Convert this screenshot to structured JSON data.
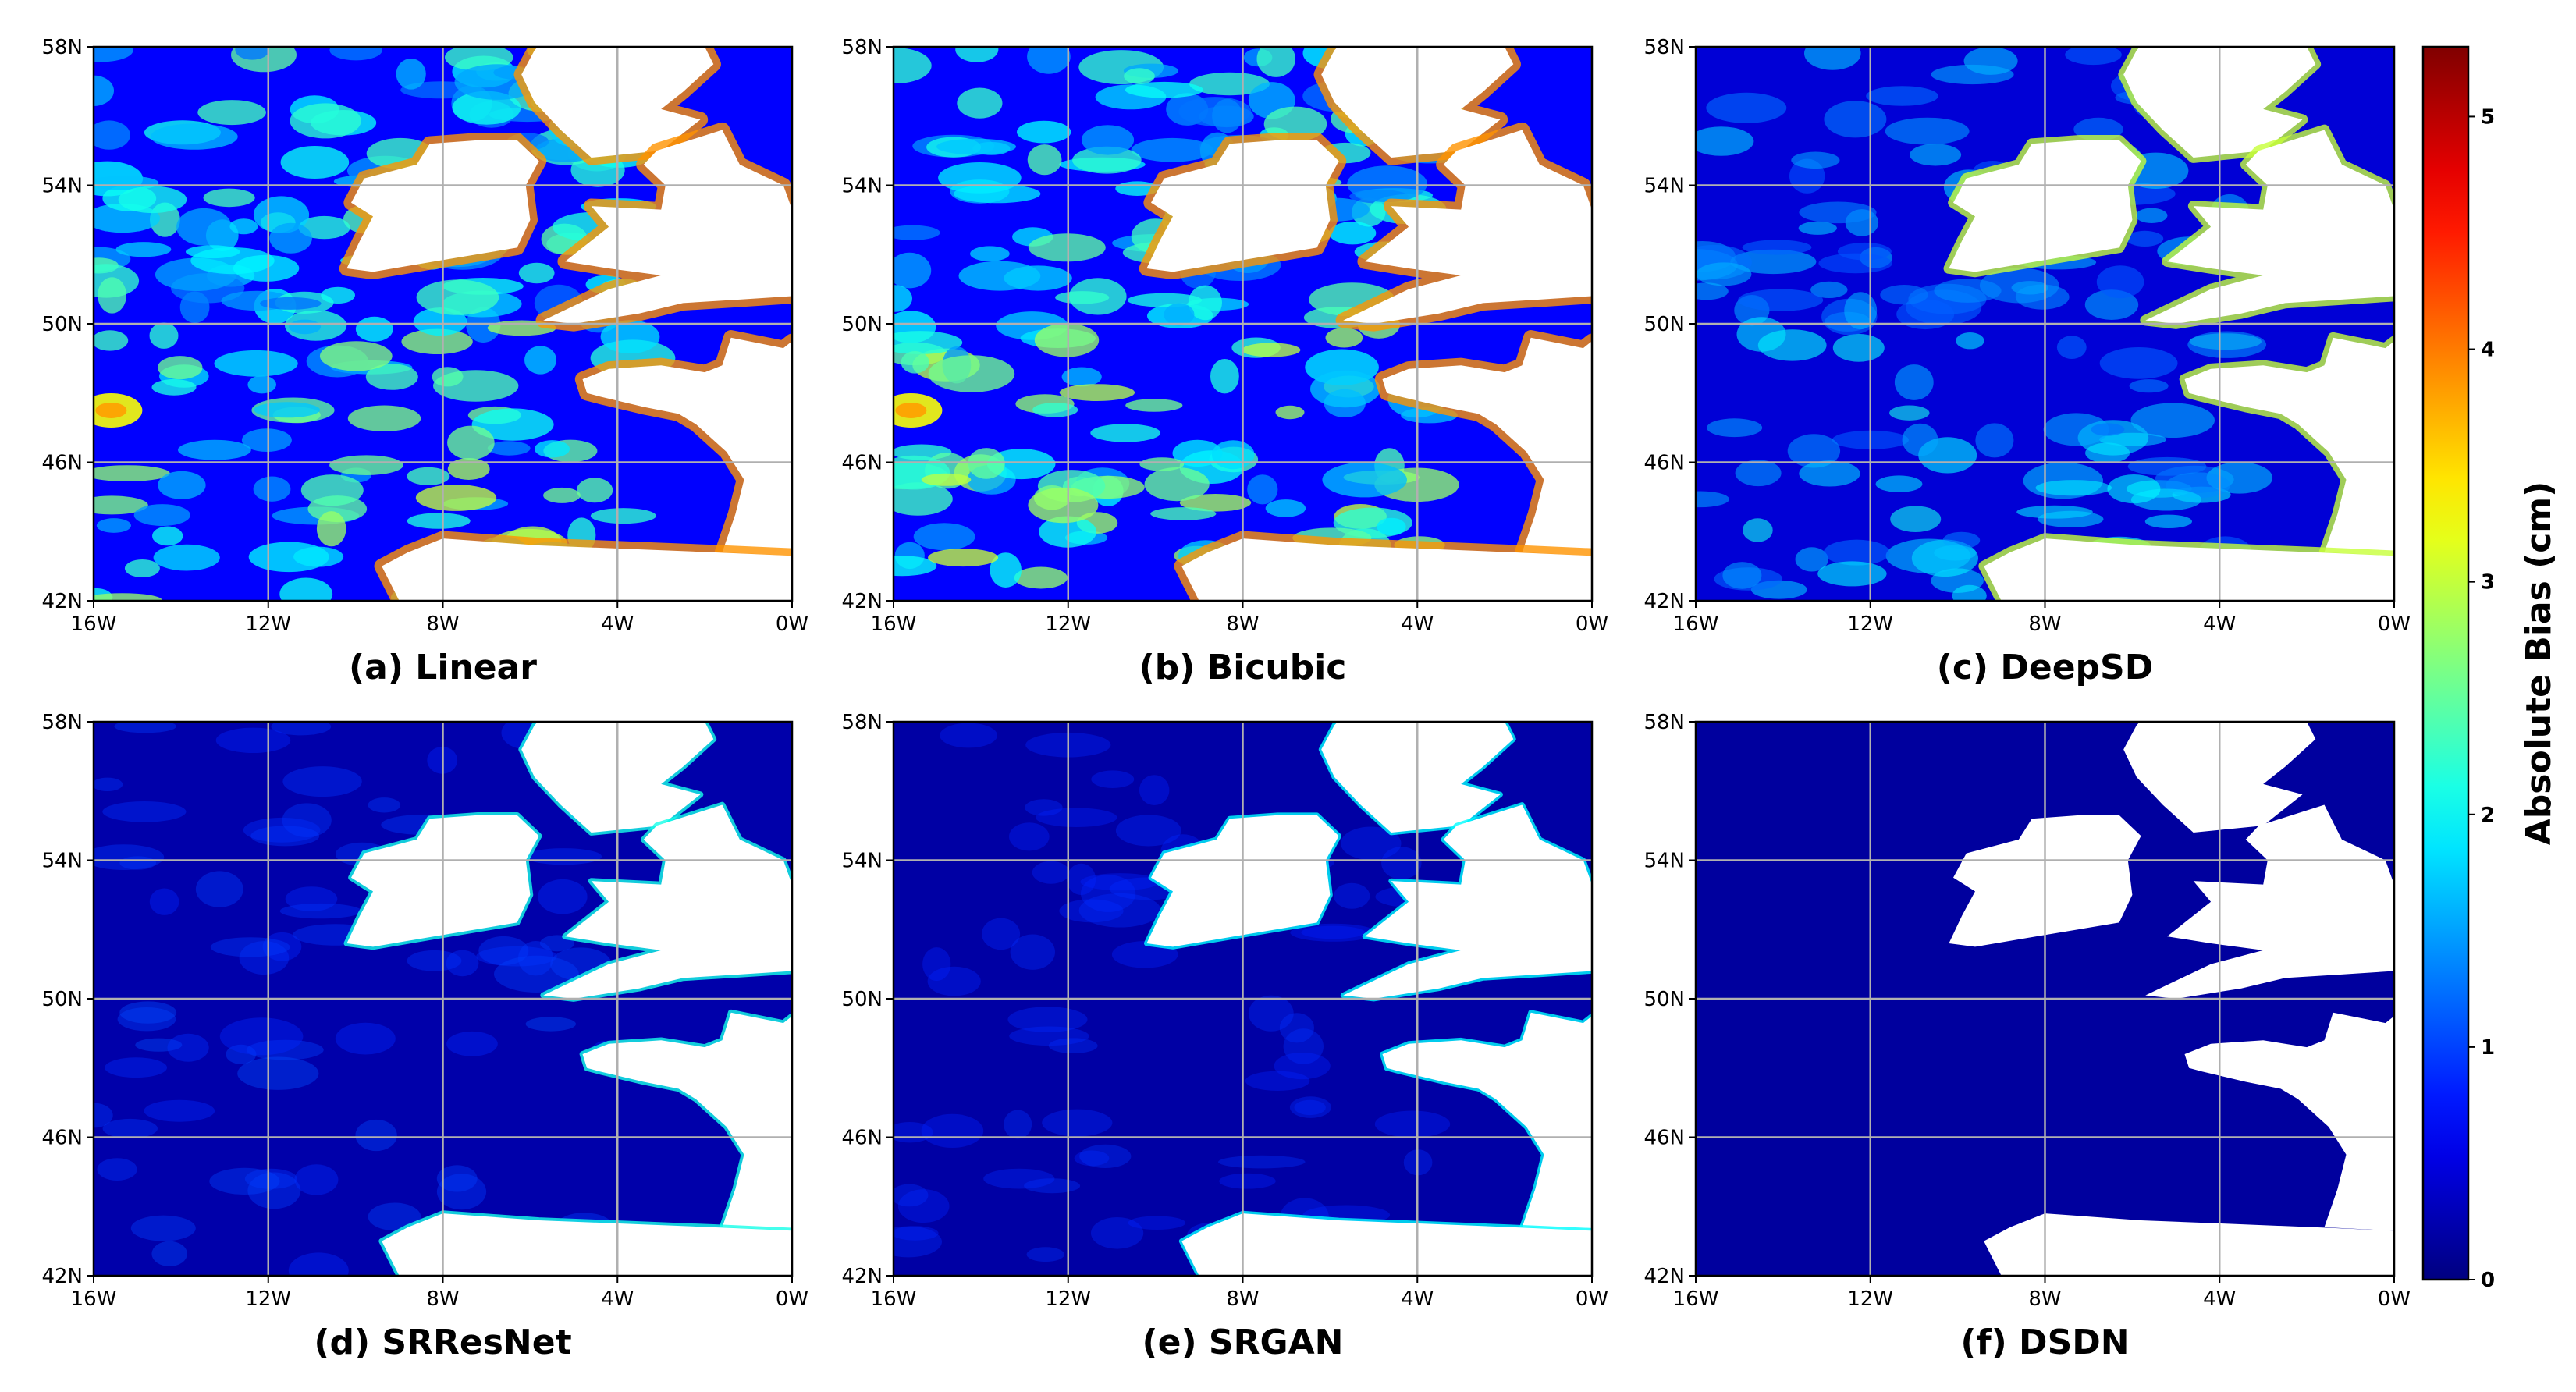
{
  "chart_data": {
    "type": "heatmap",
    "x_ticks": [
      "16W",
      "12W",
      "8W",
      "4W",
      "0W"
    ],
    "y_ticks": [
      "58N",
      "54N",
      "50N",
      "46N",
      "42N"
    ],
    "xlim": [
      -16,
      0
    ],
    "ylim": [
      42,
      58
    ],
    "grid": true,
    "panels": [
      {
        "caption": "(a) Linear",
        "level": 0.95
      },
      {
        "caption": "(b) Bicubic",
        "level": 0.95
      },
      {
        "caption": "(c) DeepSD",
        "level": 0.55
      },
      {
        "caption": "(d) SRResNet",
        "level": 0.12
      },
      {
        "caption": "(e) SRGAN",
        "level": 0.06
      },
      {
        "caption": "(f) DSDN",
        "level": 0.0
      }
    ],
    "colorbar": {
      "label": "Absolute Bias (cm)",
      "ticks": [
        0,
        1,
        2,
        3,
        4,
        5
      ],
      "range": [
        0,
        5.3
      ],
      "colormap": "jet"
    },
    "colors": {
      "land": "#ffffff",
      "grid": "#b0b0b0",
      "ocean_low": "#00008f"
    }
  }
}
